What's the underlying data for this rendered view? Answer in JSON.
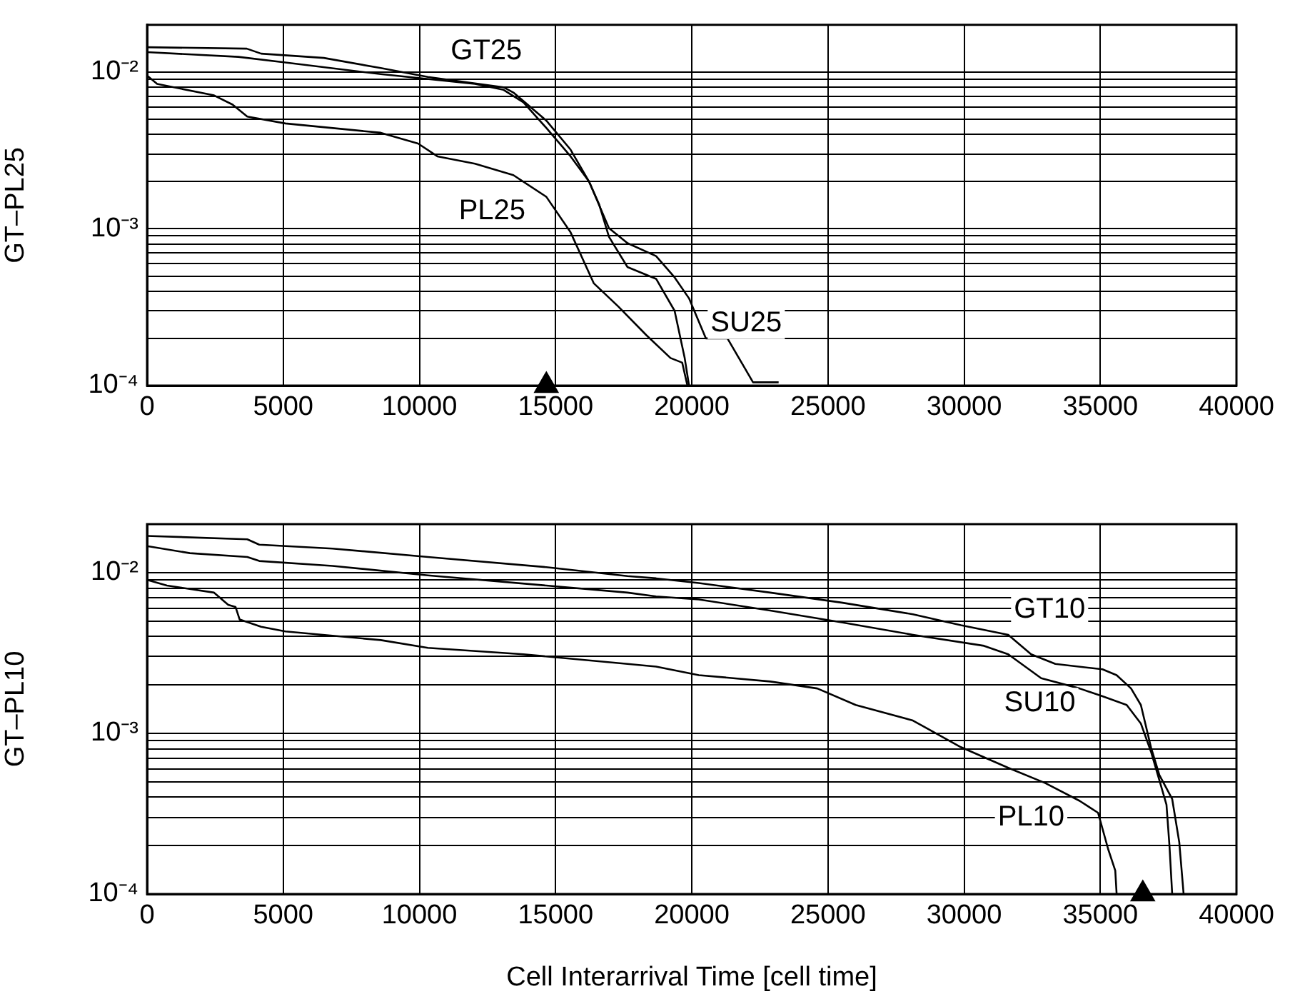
{
  "chart_data": [
    {
      "type": "line",
      "ylabel": "GT–PL25",
      "log": "y",
      "grid": true,
      "legend": false,
      "marker": "none",
      "line_style": "solid",
      "xlim": [
        0,
        40000
      ],
      "xticks": [
        0,
        5000,
        10000,
        15000,
        20000,
        25000,
        30000,
        35000,
        40000
      ],
      "ylim": [
        0.0001,
        0.02
      ],
      "yticks": [
        {
          "value": 0.0001,
          "label": "10⁻⁴"
        },
        {
          "value": 0.0002,
          "label": null
        },
        {
          "value": 0.0003,
          "label": null
        },
        {
          "value": 0.0004,
          "label": null
        },
        {
          "value": 0.0005,
          "label": null
        },
        {
          "value": 0.0006,
          "label": null
        },
        {
          "value": 0.0007,
          "label": null
        },
        {
          "value": 0.0008,
          "label": null
        },
        {
          "value": 0.0009,
          "label": null
        },
        {
          "value": 0.001,
          "label": "10⁻³"
        },
        {
          "value": 0.002,
          "label": null
        },
        {
          "value": 0.003,
          "label": null
        },
        {
          "value": 0.004,
          "label": null
        },
        {
          "value": 0.005,
          "label": null
        },
        {
          "value": 0.006,
          "label": null
        },
        {
          "value": 0.007,
          "label": null
        },
        {
          "value": 0.008,
          "label": null
        },
        {
          "value": 0.009,
          "label": null
        },
        {
          "value": 0.01,
          "label": "10⁻²"
        }
      ],
      "series": [
        {
          "name": "GT25",
          "color": "#000000",
          "x": [
            0,
            3660,
            4190,
            6490,
            8580,
            10310,
            13090,
            13450,
            14660,
            15550,
            16230,
            16600,
            16960,
            17640,
            18690,
            19370,
            19740,
            19900
          ],
          "values": [
            0.0144,
            0.0141,
            0.0131,
            0.0123,
            0.0106,
            0.0093,
            0.008,
            0.0074,
            0.0049,
            0.0032,
            0.002,
            0.00143,
            0.00089,
            0.00057,
            0.00048,
            0.0003,
            0.00015,
            0.0001
          ]
        },
        {
          "name": "SU25",
          "color": "#000000",
          "x": [
            0,
            3350,
            5080,
            8580,
            12040,
            13090,
            13820,
            14660,
            15550,
            16230,
            16960,
            17640,
            18690,
            19370,
            19900,
            20520,
            21310,
            21830,
            22250,
            23190
          ],
          "values": [
            0.0134,
            0.0125,
            0.0115,
            0.0097,
            0.0084,
            0.0077,
            0.0064,
            0.0044,
            0.0029,
            0.002,
            0.00101,
            0.00081,
            0.00067,
            0.00049,
            0.00036,
            0.0002,
            0.0002,
            0.00014,
            0.000105,
            0.000105
          ]
        },
        {
          "name": "PL25",
          "color": "#000000",
          "x": [
            0,
            370,
            2460,
            3140,
            3680,
            5080,
            8580,
            9950,
            10660,
            12040,
            13450,
            14660,
            15550,
            16400,
            17300,
            18330,
            19220,
            19650,
            19840
          ],
          "values": [
            0.0095,
            0.0084,
            0.0071,
            0.0062,
            0.0052,
            0.0047,
            0.0041,
            0.0035,
            0.0029,
            0.0026,
            0.0022,
            0.0016,
            0.00095,
            0.00045,
            0.00032,
            0.00021,
            0.00015,
            0.00014,
            0.0001
          ]
        },
        {
          "type": "scatter",
          "marker": "triangle",
          "color": "#000000",
          "x": [
            14660
          ],
          "values": [
            0.0001
          ]
        }
      ]
    },
    {
      "type": "line",
      "xlabel": "Cell Interarrival Time [cell time]",
      "ylabel": "GT–PL10",
      "log": "y",
      "grid": true,
      "legend": false,
      "marker": "none",
      "line_style": "solid",
      "xlim": [
        0,
        40000
      ],
      "xticks": [
        0,
        5000,
        10000,
        15000,
        20000,
        25000,
        30000,
        35000,
        40000
      ],
      "ylim": [
        0.0001,
        0.02
      ],
      "yticks": [
        {
          "value": 0.0001,
          "label": "10⁻⁴"
        },
        {
          "value": 0.0002,
          "label": null
        },
        {
          "value": 0.0003,
          "label": null
        },
        {
          "value": 0.0004,
          "label": null
        },
        {
          "value": 0.0005,
          "label": null
        },
        {
          "value": 0.0006,
          "label": null
        },
        {
          "value": 0.0007,
          "label": null
        },
        {
          "value": 0.0008,
          "label": null
        },
        {
          "value": 0.0009,
          "label": null
        },
        {
          "value": 0.001,
          "label": "10⁻³"
        },
        {
          "value": 0.002,
          "label": null
        },
        {
          "value": 0.003,
          "label": null
        },
        {
          "value": 0.004,
          "label": null
        },
        {
          "value": 0.005,
          "label": null
        },
        {
          "value": 0.006,
          "label": null
        },
        {
          "value": 0.007,
          "label": null
        },
        {
          "value": 0.008,
          "label": null
        },
        {
          "value": 0.009,
          "label": null
        },
        {
          "value": 0.01,
          "label": "10⁻²"
        }
      ],
      "series": [
        {
          "name": "GT10",
          "color": "#000000",
          "x": [
            0,
            3680,
            4120,
            6810,
            10310,
            14660,
            17640,
            18690,
            20260,
            22880,
            25500,
            28120,
            29880,
            31620,
            32460,
            33350,
            35080,
            35600,
            36130,
            36490,
            36860,
            37170,
            37640,
            37900,
            38060
          ],
          "values": [
            0.0169,
            0.0161,
            0.0149,
            0.0141,
            0.0125,
            0.0108,
            0.0095,
            0.0092,
            0.0086,
            0.0075,
            0.0065,
            0.0055,
            0.0047,
            0.0041,
            0.0031,
            0.0027,
            0.0025,
            0.0023,
            0.0019,
            0.0015,
            0.00082,
            0.00055,
            0.00039,
            0.00021,
            0.0001
          ]
        },
        {
          "name": "SU10",
          "color": "#000000",
          "x": [
            0,
            1570,
            3680,
            4120,
            6810,
            10310,
            14660,
            17640,
            18690,
            20260,
            22880,
            25500,
            28120,
            30730,
            31620,
            32830,
            34240,
            35080,
            35970,
            36490,
            36860,
            37170,
            37430,
            37540,
            37640
          ],
          "values": [
            0.0146,
            0.0132,
            0.0125,
            0.0118,
            0.011,
            0.0096,
            0.0083,
            0.0075,
            0.0071,
            0.0068,
            0.0058,
            0.0049,
            0.0041,
            0.0035,
            0.0031,
            0.0022,
            0.0019,
            0.0017,
            0.0015,
            0.00115,
            0.00077,
            0.00051,
            0.00036,
            0.0002,
            0.0001
          ]
        },
        {
          "name": "PL10",
          "color": "#000000",
          "x": [
            0,
            730,
            2460,
            2980,
            3250,
            3400,
            4190,
            5080,
            8580,
            10310,
            13820,
            17640,
            18690,
            20260,
            22880,
            24610,
            26020,
            28120,
            29880,
            31620,
            32980,
            34240,
            34920,
            35290,
            35550,
            35600
          ],
          "values": [
            0.009,
            0.0083,
            0.0075,
            0.0063,
            0.0061,
            0.0051,
            0.0046,
            0.0043,
            0.0038,
            0.0034,
            0.0031,
            0.0027,
            0.0026,
            0.0023,
            0.0021,
            0.0019,
            0.0015,
            0.0012,
            0.00082,
            0.00061,
            0.00049,
            0.00038,
            0.00032,
            0.00019,
            0.00014,
            0.0001
          ]
        },
        {
          "type": "scatter",
          "marker": "triangle",
          "color": "#000000",
          "x": [
            36560
          ],
          "values": [
            0.0001
          ]
        }
      ]
    }
  ]
}
